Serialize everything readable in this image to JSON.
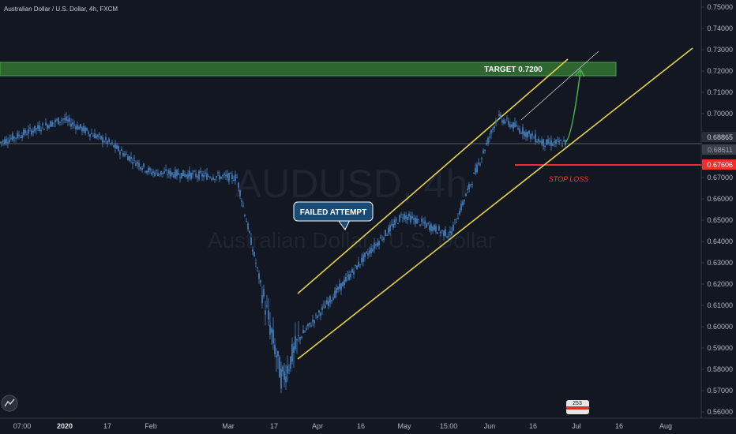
{
  "symbol_header": "Australian Dollar / U.S. Dollar, 4h, FXCM",
  "watermark": {
    "ticker": "AUDUSD, 4h",
    "name": "Australian Dollar / U.S. Dollar"
  },
  "price_axis": {
    "ticks": [
      "0.75000",
      "0.74000",
      "0.73000",
      "0.72000",
      "0.71000",
      "0.70000",
      "0.69000",
      "0.67000",
      "0.66000",
      "0.65000",
      "0.64000",
      "0.63000",
      "0.62000",
      "0.61000",
      "0.60000",
      "0.59000",
      "0.58000",
      "0.57000",
      "0.56000"
    ],
    "last_price_tag": "0.68865",
    "cursor_price_tag": "0.68611",
    "stop_price_tag": "0.67606"
  },
  "time_axis": {
    "labels": [
      "07:00",
      "2020",
      "17",
      "Feb",
      "Mar",
      "17",
      "Apr",
      "16",
      "May",
      "15:00",
      "Jun",
      "16",
      "Jul",
      "16",
      "Aug"
    ],
    "bold": [
      "2020"
    ]
  },
  "annotations": {
    "target_label": "TARGET 0.7200",
    "failed_attempt_label": "FAILED ATTEMPT",
    "stop_loss_label": "STOP LOSS",
    "badge_text": "253"
  },
  "colors": {
    "background": "#131722",
    "candles": "#4a86c9",
    "target_zone": "#2f6b30",
    "channel": "#e6d24a",
    "stop": "#ef2f2f",
    "projection": "#4caf50"
  },
  "chart_data": {
    "type": "line",
    "title": "Australian Dollar / U.S. Dollar, 4h, FXCM",
    "xlabel": "",
    "ylabel": "",
    "ylim": [
      0.56,
      0.75
    ],
    "grid": false,
    "series": [
      {
        "x": [
          "07:00",
          "2020",
          "17",
          "Feb",
          "Mar",
          "17",
          "Apr",
          "16",
          "May",
          "15:00",
          "Jun",
          "16",
          "Jul"
        ],
        "values": [
          0.6865,
          0.6975,
          0.6868,
          0.6725,
          0.67,
          0.575,
          0.595,
          0.632,
          0.6525,
          0.643,
          0.6985,
          0.686,
          0.6865
        ]
      }
    ],
    "levels": [
      {
        "label": "TARGET 0.7200",
        "from": 0.7185,
        "to": 0.7245
      },
      {
        "label": "STOP LOSS",
        "value": 0.676
      }
    ]
  }
}
